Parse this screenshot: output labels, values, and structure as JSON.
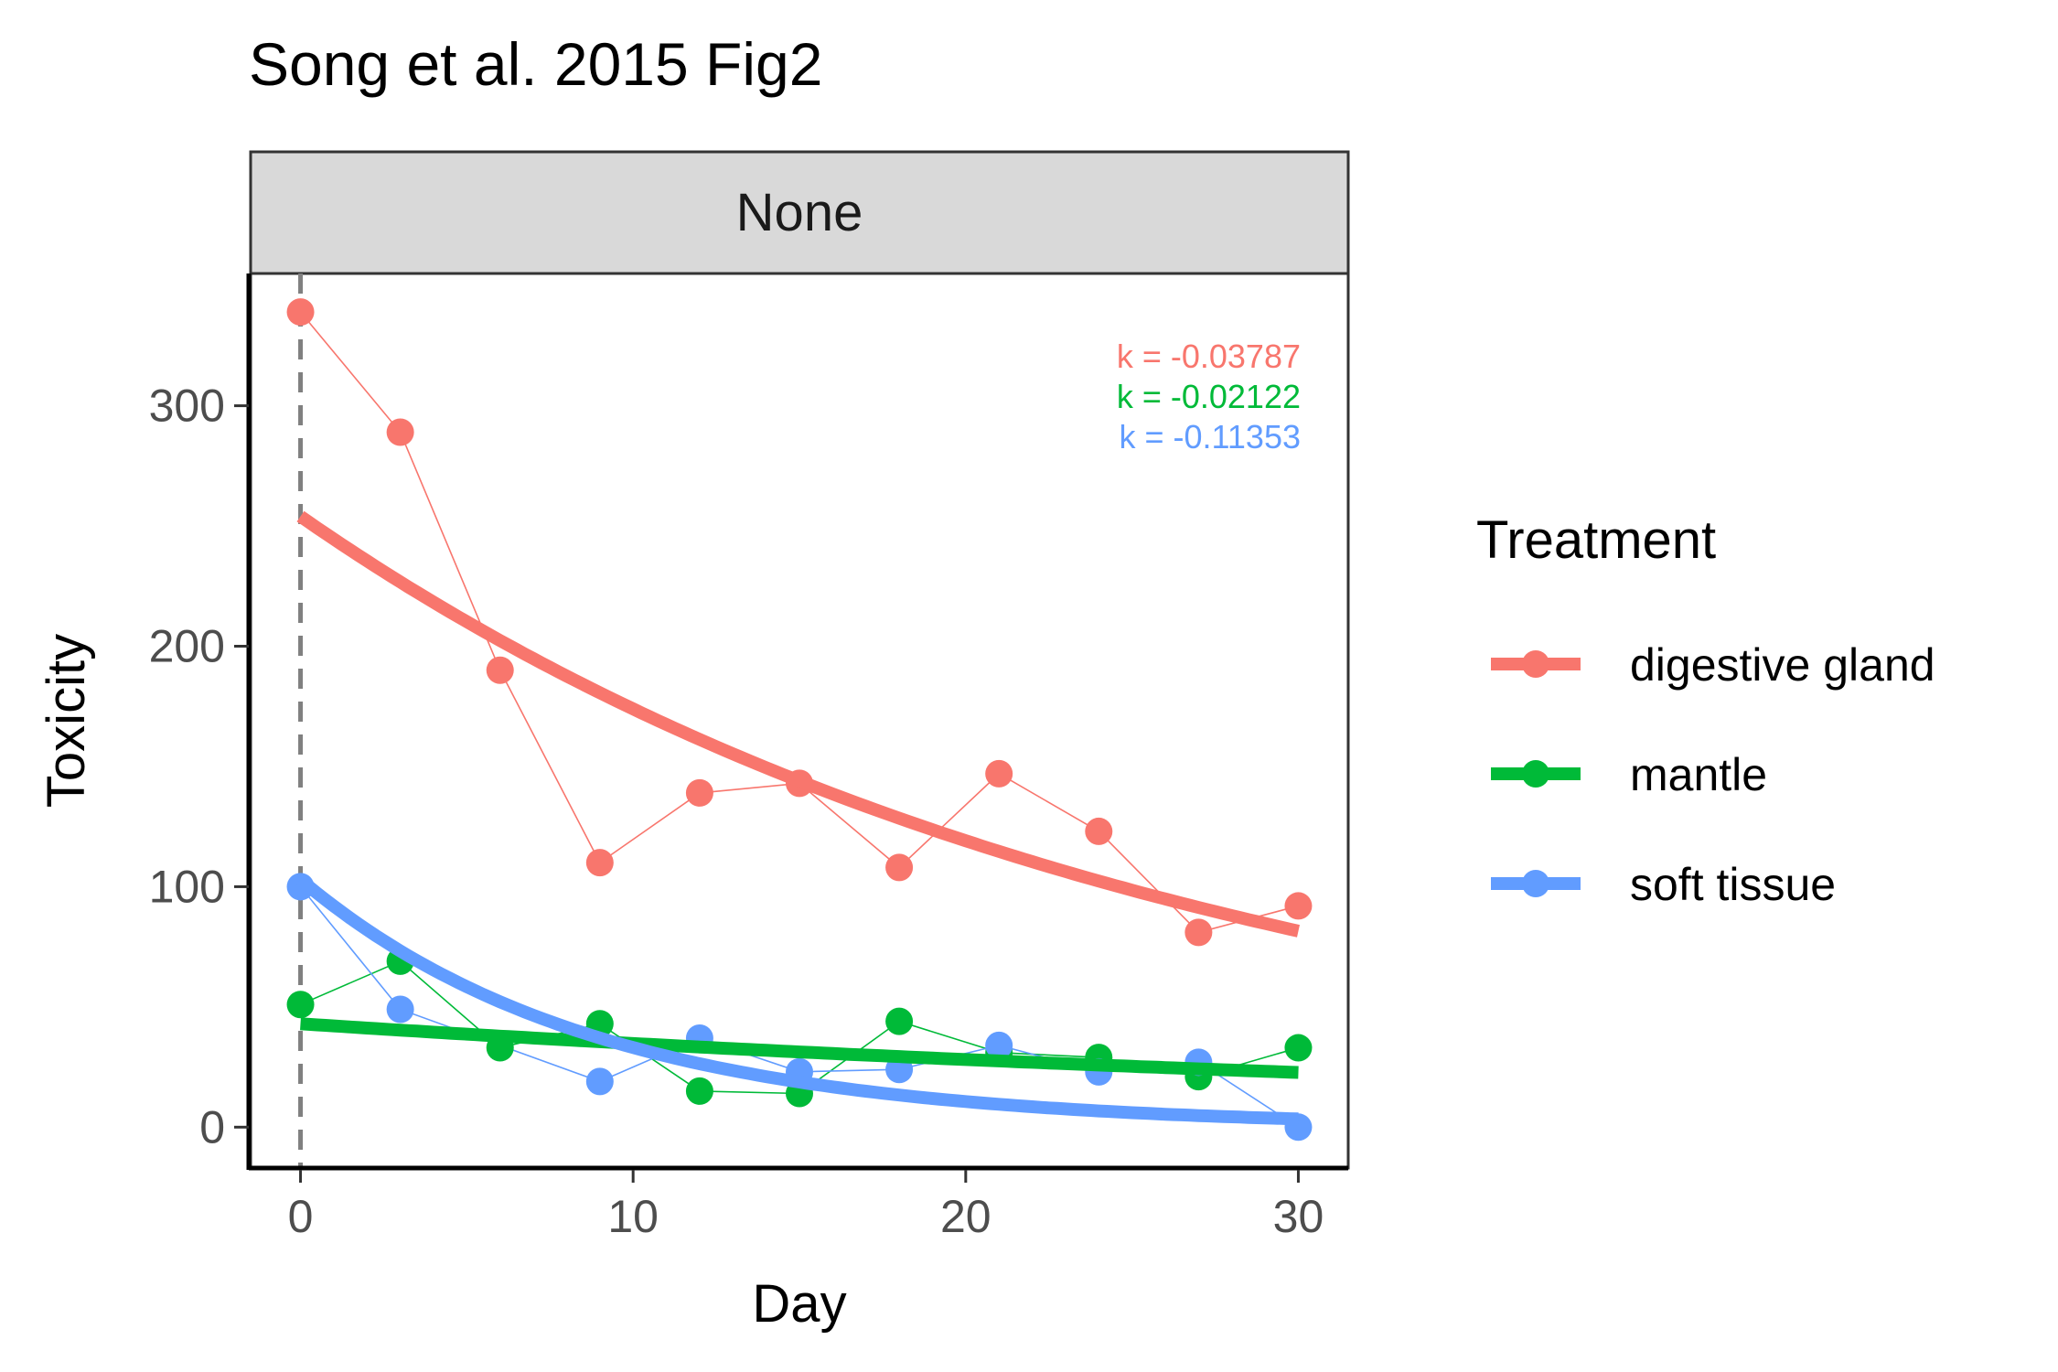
{
  "chart_data": {
    "type": "line",
    "title": "Song et al. 2015 Fig2",
    "facet_label": "None",
    "xlabel": "Day",
    "ylabel": "Toxicity",
    "xlim": [
      -1.5,
      31.5
    ],
    "ylim": [
      -17,
      355
    ],
    "x_ticks": [
      0,
      10,
      20,
      30
    ],
    "y_ticks": [
      0,
      100,
      200,
      300
    ],
    "vline_x": 0,
    "legend_title": "Treatment",
    "legend_position": "right",
    "series": [
      {
        "name": "digestive gland",
        "color": "#F8766D",
        "x": [
          0,
          3,
          6,
          9,
          12,
          15,
          18,
          21,
          24,
          27,
          30
        ],
        "y": [
          339,
          289,
          190,
          110,
          139,
          143,
          108,
          147,
          123,
          81,
          92
        ],
        "fit": {
          "a": 254,
          "k": -0.03787
        },
        "k_label": "k = -0.03787"
      },
      {
        "name": "mantle",
        "color": "#00BA38",
        "x": [
          0,
          3,
          6,
          9,
          12,
          15,
          18,
          21,
          24,
          27,
          30
        ],
        "y": [
          51,
          69,
          33,
          43,
          15,
          14,
          44,
          31,
          29,
          21,
          33
        ],
        "fit": {
          "a": 43,
          "k": -0.02122
        },
        "k_label": "k = -0.02122"
      },
      {
        "name": "soft tissue",
        "color": "#619CFF",
        "x": [
          0,
          3,
          9,
          12,
          15,
          18,
          21,
          24,
          27,
          30
        ],
        "y": [
          100,
          49,
          19,
          37,
          23,
          24,
          34,
          23,
          27,
          0
        ],
        "fit": {
          "a": 103,
          "k": -0.11353
        },
        "k_label": "k = -0.11353"
      }
    ]
  }
}
